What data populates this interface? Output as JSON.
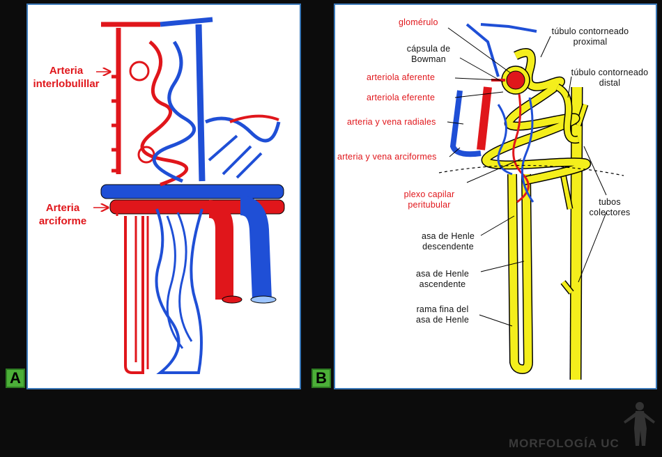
{
  "panels": {
    "a": {
      "badge": "A",
      "labels": {
        "arteria_interlobulillar_1": "Arteria",
        "arteria_interlobulillar_2": "interlobulillar",
        "arteria_arciforme_1": "Arteria",
        "arteria_arciforme_2": "arciforme"
      }
    },
    "b": {
      "badge": "B",
      "labels": {
        "glomerulo": "glomérulo",
        "capsula_1": "cápsula de",
        "capsula_2": "Bowman",
        "arteriola_aferente": "arteriola aferente",
        "arteriola_eferente": "arteriola eferente",
        "arteria_vena_radiales": "arteria y vena radiales",
        "arteria_vena_arciformes": "arteria y vena arciformes",
        "plexo_1": "plexo capilar",
        "plexo_2": "peritubular",
        "tubulo_proximal_1": "túbulo contorneado",
        "tubulo_proximal_2": "proximal",
        "tubulo_distal_1": "túbulo contorneado",
        "tubulo_distal_2": "distal",
        "tubos_colectores_1": "tubos",
        "tubos_colectores_2": "colectores",
        "asa_descendente_1": "asa de Henle",
        "asa_descendente_2": "descendente",
        "asa_ascendente_1": "asa de Henle",
        "asa_ascendente_2": "ascendente",
        "rama_fina_1": "rama fina del",
        "rama_fina_2": "asa de Henle"
      }
    }
  },
  "watermark": "MORFOLOGÍA UC",
  "colors": {
    "artery": "#e0161b",
    "vein": "#1f4fd6",
    "tubule": "#f4ee1c",
    "panel_border": "#3a78b8",
    "badge": "#4caf38"
  }
}
